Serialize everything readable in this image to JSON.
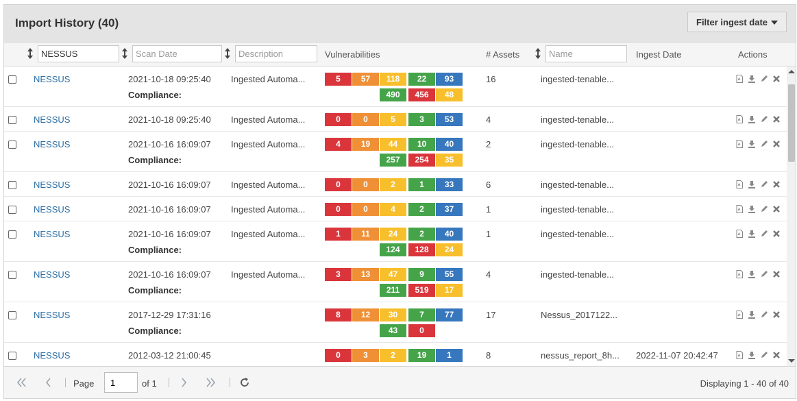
{
  "title": "Import History (40)",
  "filter_button": "Filter ingest date",
  "colors": {
    "critical": "#d9353b",
    "high": "#ef9036",
    "medium": "#f8bf2c",
    "low": "#45a449",
    "info": "#3777bd"
  },
  "columns": {
    "source_filter_value": "NESSUS",
    "scan_date_placeholder": "Scan Date",
    "description_placeholder": "Description",
    "vulnerabilities": "Vulnerabilities",
    "assets": "# Assets",
    "name_placeholder": "Name",
    "ingest_date": "Ingest Date",
    "actions": "Actions"
  },
  "compliance_label": "Compliance:",
  "rows": [
    {
      "source": "NESSUS",
      "scan_date": "2021-10-18 09:25:40",
      "description": "Ingested Automa...",
      "vulns": [
        "5",
        "57",
        "118",
        "22",
        "93"
      ],
      "compliance": [
        "490",
        "456",
        "48"
      ],
      "assets": "16",
      "name": "ingested-tenable...",
      "ingest_date": ""
    },
    {
      "source": "NESSUS",
      "scan_date": "2021-10-18 09:25:40",
      "description": "Ingested Automa...",
      "vulns": [
        "0",
        "0",
        "5",
        "3",
        "53"
      ],
      "compliance": null,
      "assets": "4",
      "name": "ingested-tenable...",
      "ingest_date": ""
    },
    {
      "source": "NESSUS",
      "scan_date": "2021-10-16 16:09:07",
      "description": "Ingested Automa...",
      "vulns": [
        "4",
        "19",
        "44",
        "10",
        "40"
      ],
      "compliance": [
        "257",
        "254",
        "35"
      ],
      "assets": "2",
      "name": "ingested-tenable...",
      "ingest_date": ""
    },
    {
      "source": "NESSUS",
      "scan_date": "2021-10-16 16:09:07",
      "description": "Ingested Automa...",
      "vulns": [
        "0",
        "0",
        "2",
        "1",
        "33"
      ],
      "compliance": null,
      "assets": "6",
      "name": "ingested-tenable...",
      "ingest_date": ""
    },
    {
      "source": "NESSUS",
      "scan_date": "2021-10-16 16:09:07",
      "description": "Ingested Automa...",
      "vulns": [
        "0",
        "0",
        "4",
        "2",
        "37"
      ],
      "compliance": null,
      "assets": "1",
      "name": "ingested-tenable...",
      "ingest_date": ""
    },
    {
      "source": "NESSUS",
      "scan_date": "2021-10-16 16:09:07",
      "description": "Ingested Automa...",
      "vulns": [
        "1",
        "11",
        "24",
        "2",
        "40"
      ],
      "compliance": [
        "124",
        "128",
        "24"
      ],
      "assets": "1",
      "name": "ingested-tenable...",
      "ingest_date": ""
    },
    {
      "source": "NESSUS",
      "scan_date": "2021-10-16 16:09:07",
      "description": "Ingested Automa...",
      "vulns": [
        "3",
        "13",
        "47",
        "9",
        "55"
      ],
      "compliance": [
        "211",
        "519",
        "17"
      ],
      "assets": "4",
      "name": "ingested-tenable...",
      "ingest_date": ""
    },
    {
      "source": "NESSUS",
      "scan_date": "2017-12-29 17:31:16",
      "description": "",
      "vulns": [
        "8",
        "12",
        "30",
        "7",
        "77"
      ],
      "compliance": [
        "43",
        "0"
      ],
      "assets": "17",
      "name": "Nessus_2017122...",
      "ingest_date": ""
    },
    {
      "source": "NESSUS",
      "scan_date": "2012-03-12 21:00:45",
      "description": "",
      "vulns": [
        "0",
        "3",
        "2",
        "19",
        "1"
      ],
      "compliance": null,
      "assets": "8",
      "name": "nessus_report_8h...",
      "ingest_date": "2022-11-07 20:42:47"
    }
  ],
  "pager": {
    "page_label": "Page",
    "page_value": "1",
    "of_label": "of 1",
    "display_text": "Displaying 1 - 40 of 40"
  }
}
